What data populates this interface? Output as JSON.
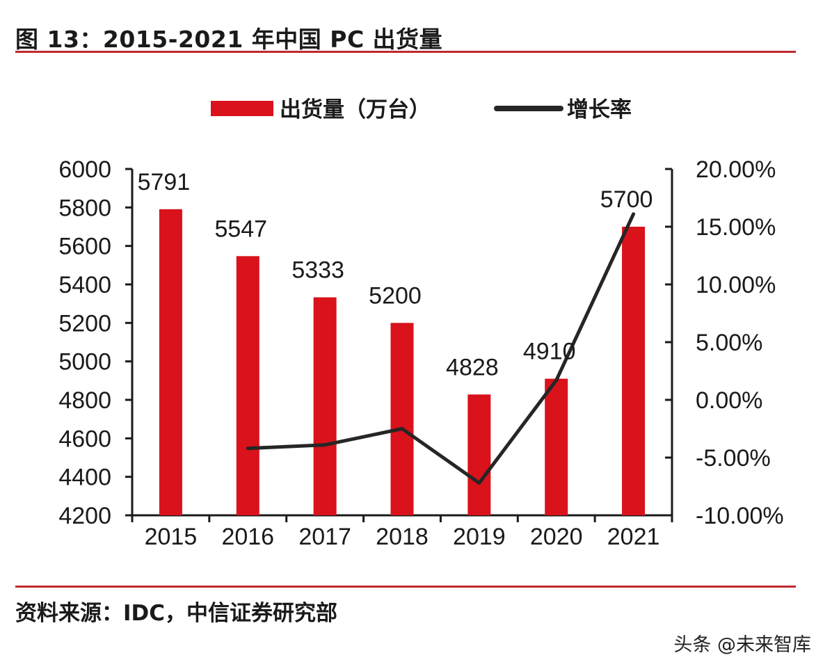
{
  "figure": {
    "title": "图 13：2015-2021 年中国 PC 出货量",
    "source": "资料来源：IDC，中信证券研究部",
    "watermark": "头条 @未来智库"
  },
  "colors": {
    "bar": "#d9121b",
    "line": "#262626",
    "rule": "#c0282d",
    "axis": "#1a1a1a"
  },
  "chart_data": {
    "type": "bar",
    "title": "",
    "categories": [
      "2015",
      "2016",
      "2017",
      "2018",
      "2019",
      "2020",
      "2021"
    ],
    "series": [
      {
        "name": "出货量（万台）",
        "type": "bar",
        "axis": "left",
        "values": [
          5791,
          5547,
          5333,
          5200,
          4828,
          4910,
          5700
        ],
        "labels": [
          "5791",
          "5547",
          "5333",
          "5200",
          "4828",
          "4910",
          "5700"
        ]
      },
      {
        "name": "增长率",
        "type": "line",
        "axis": "right",
        "values": [
          null,
          -4.2,
          -3.9,
          -2.5,
          -7.2,
          1.7,
          16.1
        ]
      }
    ],
    "left_axis": {
      "ylim": [
        4200,
        6000
      ],
      "ticks": [
        4200,
        4400,
        4600,
        4800,
        5000,
        5200,
        5400,
        5600,
        5800,
        6000
      ],
      "tick_labels": [
        "4200",
        "4400",
        "4600",
        "4800",
        "5000",
        "5200",
        "5400",
        "5600",
        "5800",
        "6000"
      ]
    },
    "right_axis": {
      "ylim": [
        -10,
        20
      ],
      "ticks": [
        -10,
        -5,
        0,
        5,
        10,
        15,
        20
      ],
      "tick_labels": [
        "-10.00%",
        "-5.00%",
        "0.00%",
        "5.00%",
        "10.00%",
        "15.00%",
        "20.00%"
      ]
    },
    "legend_position": "top",
    "grid": false
  }
}
